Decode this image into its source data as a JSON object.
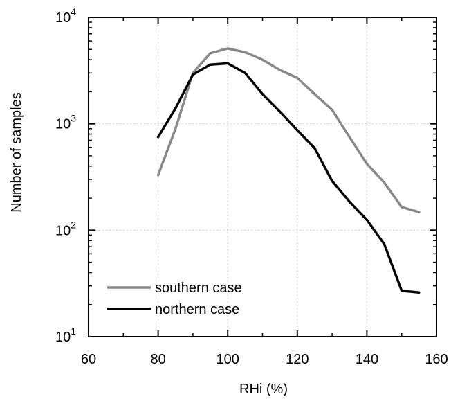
{
  "chart_data": {
    "type": "line",
    "xlabel": "RHi (%)",
    "ylabel": "Number of samples",
    "xlim": [
      60,
      160
    ],
    "ylim": [
      10,
      10000
    ],
    "yscale": "log",
    "grid": true,
    "legend_position": "bottom-left",
    "x_ticks": [
      {
        "value": 60,
        "label": "60"
      },
      {
        "value": 80,
        "label": "80"
      },
      {
        "value": 100,
        "label": "100"
      },
      {
        "value": 120,
        "label": "120"
      },
      {
        "value": 140,
        "label": "140"
      },
      {
        "value": 160,
        "label": "160"
      }
    ],
    "y_ticks": [
      {
        "value": 10,
        "base": "10",
        "exp": "1"
      },
      {
        "value": 100,
        "base": "10",
        "exp": "2"
      },
      {
        "value": 1000,
        "base": "10",
        "exp": "3"
      },
      {
        "value": 10000,
        "base": "10",
        "exp": "4"
      }
    ],
    "x": [
      80,
      85,
      90,
      95,
      100,
      105,
      110,
      115,
      120,
      125,
      130,
      135,
      140,
      145,
      150,
      155
    ],
    "series": [
      {
        "name": "southern case",
        "color": "#888888",
        "values": [
          330,
          900,
          3000,
          4600,
          5100,
          4700,
          4000,
          3200,
          2700,
          1900,
          1350,
          750,
          420,
          280,
          165,
          148
        ]
      },
      {
        "name": "northern case",
        "color": "#000000",
        "values": [
          750,
          1400,
          2900,
          3600,
          3700,
          3000,
          1900,
          1300,
          870,
          590,
          290,
          185,
          125,
          74,
          27,
          26
        ]
      }
    ]
  }
}
